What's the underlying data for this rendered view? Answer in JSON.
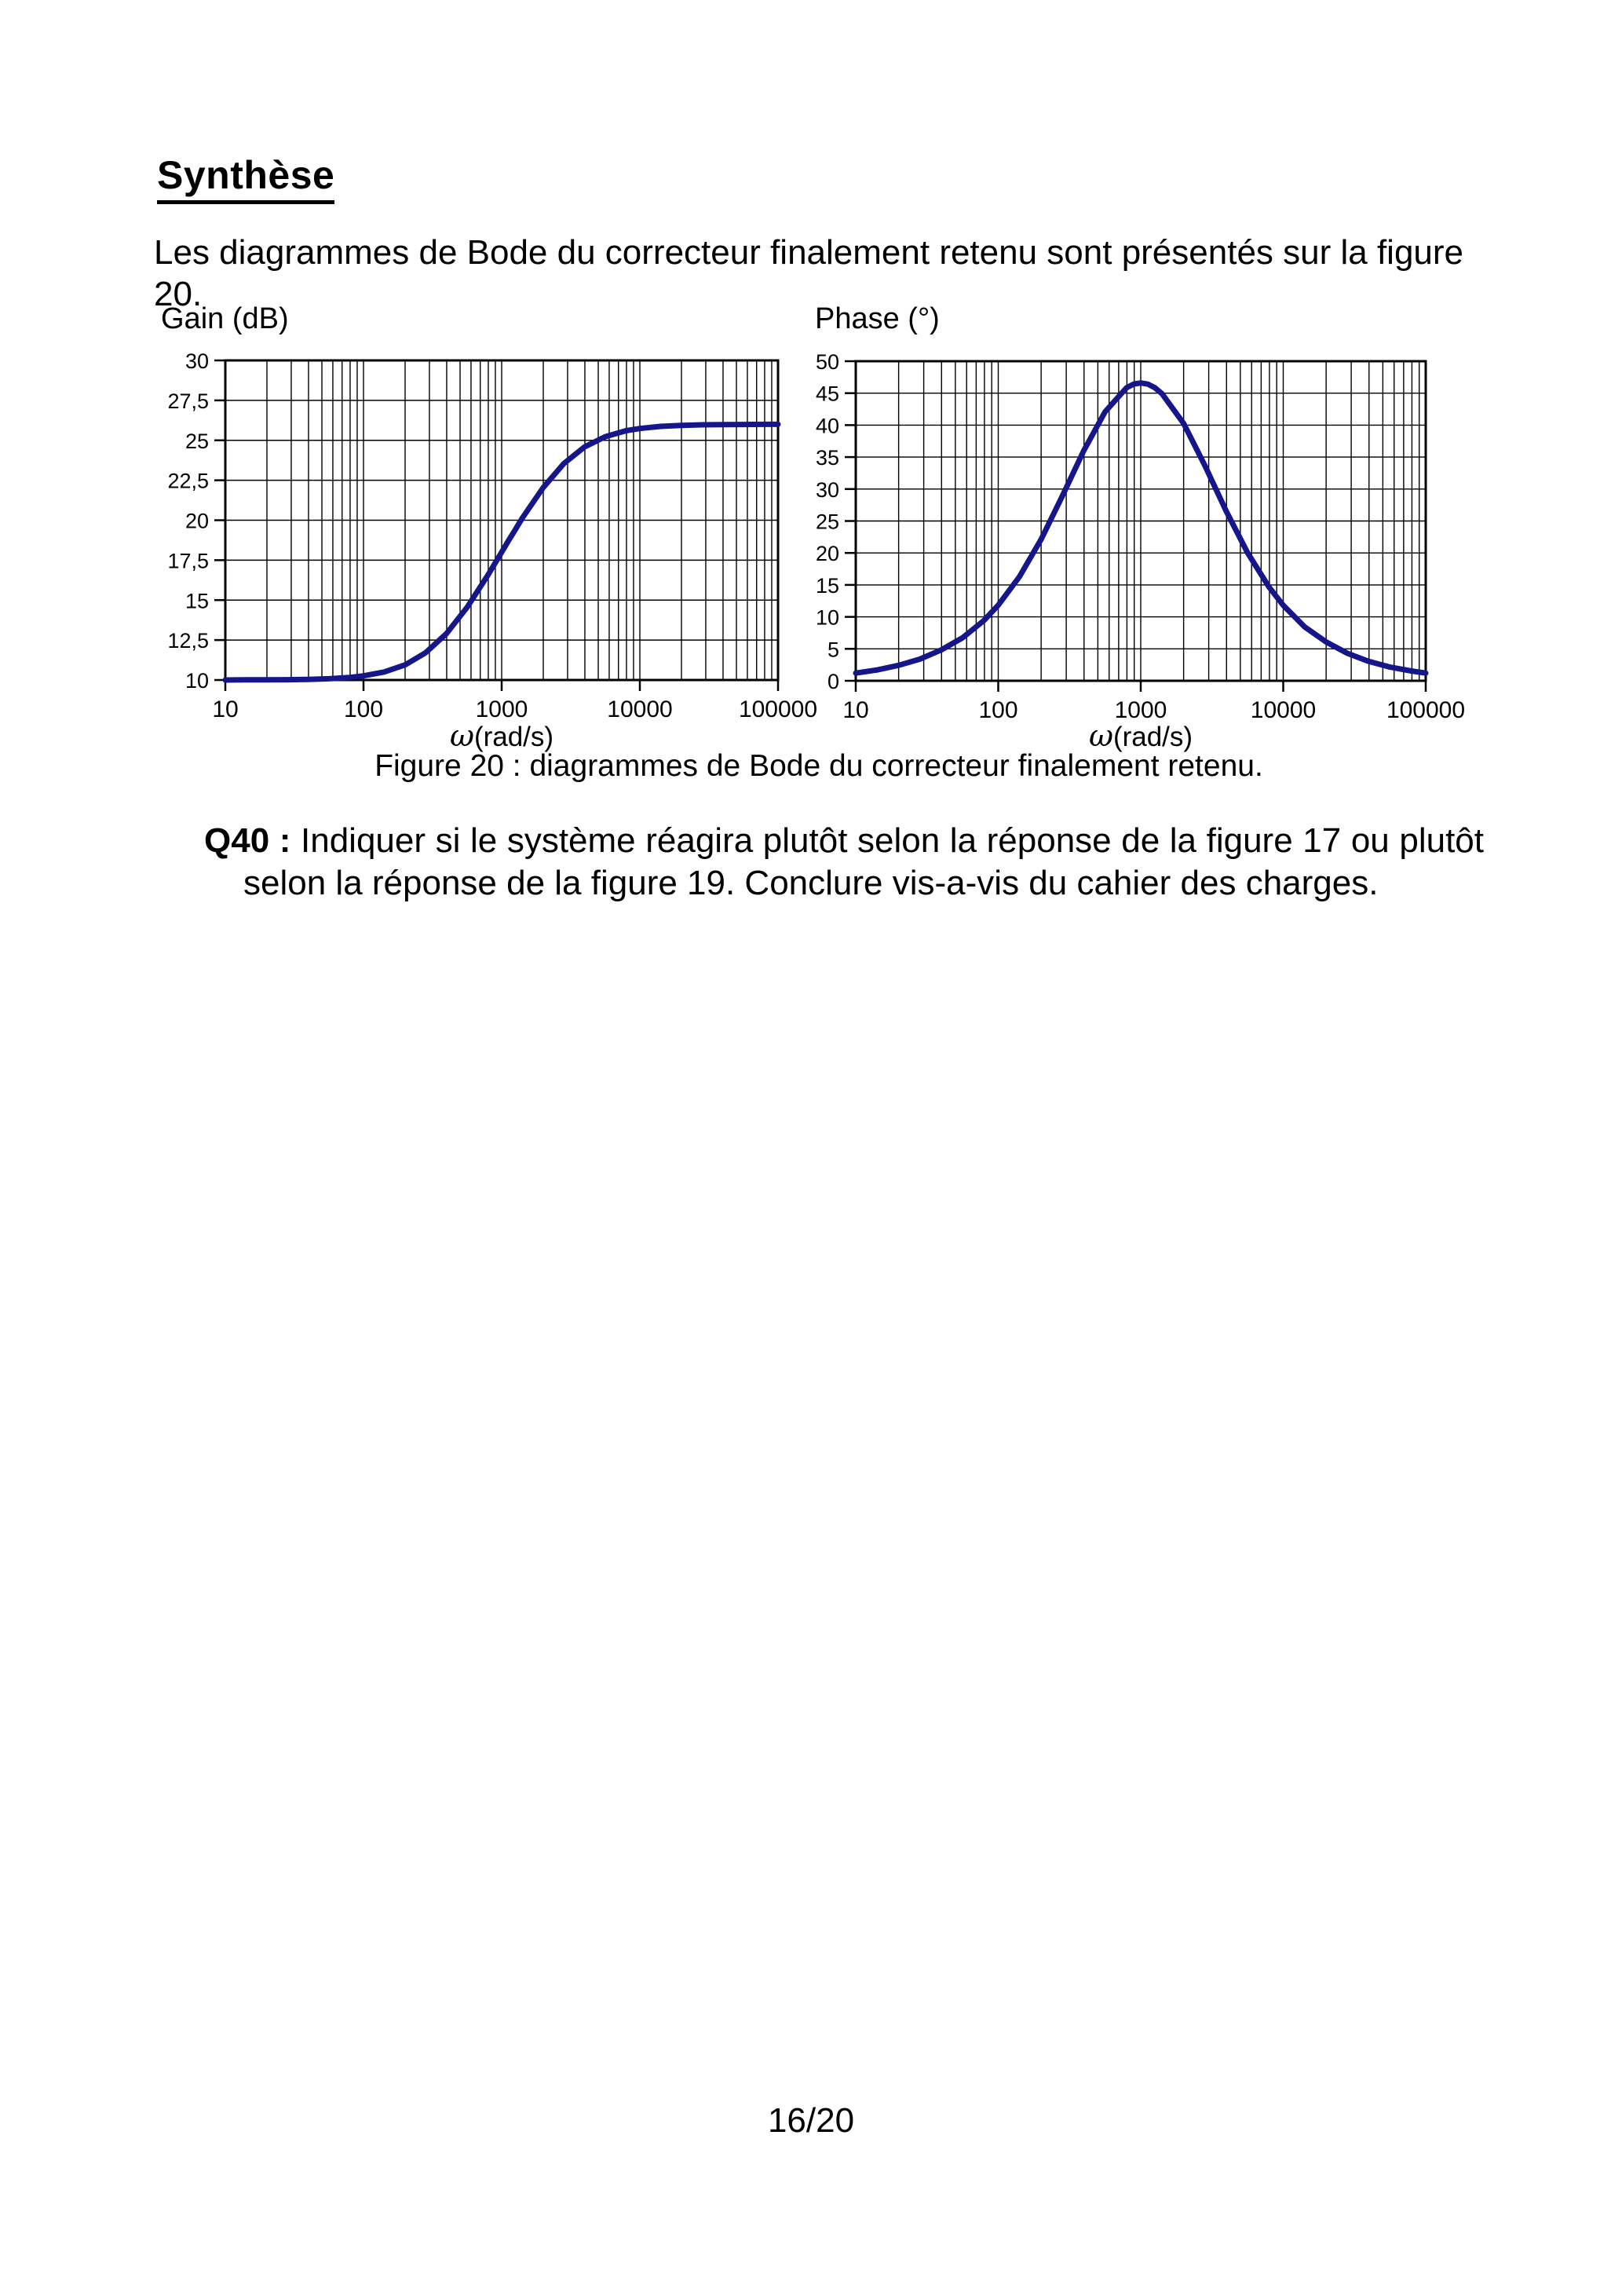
{
  "page": {
    "title": "Synthèse",
    "intro": "Les diagrammes de Bode du correcteur finalement retenu sont présentés sur la figure 20.",
    "caption": "Figure 20 : diagrammes de Bode du correcteur finalement retenu.",
    "question_label": "Q40 :",
    "question_text": "Indiquer si le système réagira plutôt selon la réponse de la figure 17 ou plutôt selon la réponse de la figure 19. Conclure vis-a-vis du cahier des charges.",
    "page_number": "16/20"
  },
  "chart_data": [
    {
      "type": "line",
      "title": "Gain (dB)",
      "xlabel": "ω(rad/s)",
      "ylabel": "Gain (dB)",
      "x_scale": "log",
      "xlim": [
        10,
        100000
      ],
      "ylim": [
        10,
        30
      ],
      "grid": true,
      "line_color": "#15158c",
      "x_tick_values": [
        10,
        100,
        1000,
        10000,
        100000
      ],
      "x_tick_labels": [
        "10",
        "100",
        "1000",
        "10000",
        "100000"
      ],
      "y_tick_values": [
        30,
        27.5,
        25,
        22.5,
        20,
        17.5,
        15,
        12.5,
        10
      ],
      "y_tick_labels": [
        "30",
        "27,5",
        "25",
        "22,5",
        "20",
        "17,5",
        "15",
        "12,5",
        "10"
      ],
      "x": [
        10,
        14.1,
        20,
        28.2,
        39.8,
        56.2,
        79.4,
        100,
        141,
        200,
        282,
        398,
        562,
        794,
        891,
        1000,
        1122,
        1259,
        1410,
        2000,
        2820,
        3980,
        5620,
        7940,
        10000,
        14100,
        20000,
        28200,
        39800,
        56200,
        79400,
        100000
      ],
      "y": [
        10.0,
        10.01,
        10.01,
        10.02,
        10.04,
        10.08,
        10.16,
        10.26,
        10.5,
        10.95,
        11.71,
        12.9,
        14.55,
        16.56,
        17.28,
        18.0,
        18.73,
        19.43,
        20.14,
        22.05,
        23.55,
        24.59,
        25.23,
        25.6,
        25.74,
        25.87,
        25.93,
        25.97,
        25.98,
        25.99,
        26.0,
        26.0
      ]
    },
    {
      "type": "line",
      "title": "Phase (°)",
      "xlabel": "ω(rad/s)",
      "ylabel": "Phase (°)",
      "x_scale": "log",
      "xlim": [
        10,
        100000
      ],
      "ylim": [
        0,
        50
      ],
      "grid": true,
      "line_color": "#15158c",
      "x_tick_values": [
        10,
        100,
        1000,
        10000,
        100000
      ],
      "x_tick_labels": [
        "10",
        "100",
        "1000",
        "10000",
        "100000"
      ],
      "y_tick_values": [
        50,
        45,
        40,
        35,
        30,
        25,
        20,
        15,
        10,
        5,
        0
      ],
      "y_tick_labels": [
        "50",
        "45",
        "40",
        "35",
        "30",
        "25",
        "20",
        "15",
        "10",
        "5",
        "0"
      ],
      "x": [
        10,
        14.1,
        20,
        28.2,
        39.8,
        56.2,
        79.4,
        100,
        141,
        200,
        282,
        398,
        562,
        794,
        891,
        1000,
        1122,
        1259,
        1410,
        2000,
        2820,
        3980,
        5620,
        7940,
        10000,
        14100,
        20000,
        28200,
        39800,
        56200,
        79400,
        100000
      ],
      "y": [
        1.21,
        1.7,
        2.42,
        3.39,
        4.83,
        6.73,
        9.43,
        11.83,
        16.3,
        22.13,
        28.92,
        36.0,
        42.09,
        45.84,
        46.41,
        46.6,
        46.41,
        45.83,
        44.92,
        40.27,
        33.67,
        26.54,
        20.02,
        14.68,
        11.81,
        8.45,
        6.08,
        4.3,
        3.04,
        2.14,
        1.53,
        1.21
      ]
    }
  ]
}
